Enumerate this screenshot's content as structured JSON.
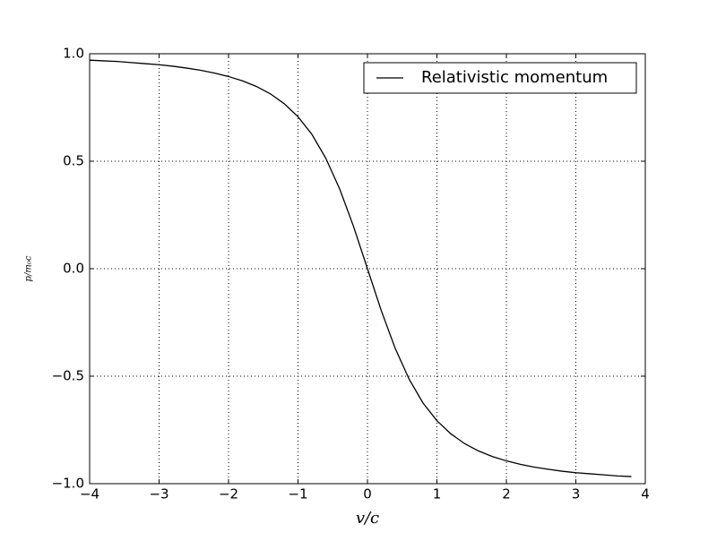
{
  "chart_data": {
    "type": "line",
    "x": [
      -4,
      -3.8,
      -3.6,
      -3.4,
      -3.2,
      -3,
      -2.8,
      -2.6,
      -2.4,
      -2.2,
      -2,
      -1.8,
      -1.6,
      -1.4,
      -1.2,
      -1,
      -0.8,
      -0.6,
      -0.4,
      -0.2,
      0,
      0.2,
      0.4,
      0.6,
      0.8,
      1,
      1.2,
      1.4,
      1.6,
      1.8,
      2,
      2.2,
      2.4,
      2.6,
      2.8,
      3,
      3.2,
      3.4,
      3.6,
      3.8
    ],
    "series": [
      {
        "name": "Relativistic momentum",
        "color": "#000000",
        "values": [
          0.97,
          0.967,
          0.964,
          0.959,
          0.954,
          0.949,
          0.942,
          0.933,
          0.923,
          0.91,
          0.894,
          0.874,
          0.848,
          0.814,
          0.768,
          0.707,
          0.625,
          0.514,
          0.371,
          0.196,
          0,
          -0.196,
          -0.371,
          -0.514,
          -0.625,
          -0.707,
          -0.768,
          -0.814,
          -0.848,
          -0.874,
          -0.894,
          -0.91,
          -0.923,
          -0.933,
          -0.942,
          -0.949,
          -0.954,
          -0.959,
          -0.964,
          -0.967
        ]
      }
    ],
    "xlabel": "v/c",
    "ylabel": "p/m₀c",
    "xlim": [
      -4,
      4
    ],
    "ylim": [
      -1,
      1
    ],
    "xticks": [
      {
        "value": -4,
        "label": "−4"
      },
      {
        "value": -3,
        "label": "−3"
      },
      {
        "value": -2,
        "label": "−2"
      },
      {
        "value": -1,
        "label": "−1"
      },
      0,
      1,
      2,
      3,
      4
    ],
    "yticks": [
      {
        "value": -1,
        "label": "−1.0"
      },
      {
        "value": -0.5,
        "label": "−0.5"
      },
      {
        "value": 0,
        "label": "0.0"
      },
      {
        "value": 0.5,
        "label": "0.5"
      },
      {
        "value": 1,
        "label": "1.0"
      }
    ],
    "grid": true,
    "legend": "upper right"
  }
}
